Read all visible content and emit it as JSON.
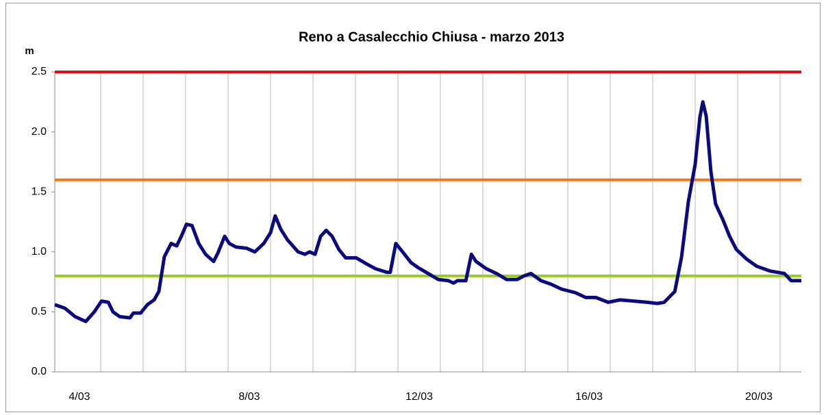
{
  "chart_data": {
    "type": "line",
    "title": "Reno a Casalecchio Chiusa - marzo 2013",
    "y_label": "m",
    "x": [
      3.92,
      4.16,
      4.4,
      4.65,
      4.85,
      5.02,
      5.18,
      5.29,
      5.45,
      5.69,
      5.77,
      5.94,
      6.1,
      6.26,
      6.37,
      6.5,
      6.66,
      6.79,
      6.9,
      7.02,
      7.15,
      7.31,
      7.47,
      7.66,
      7.76,
      7.92,
      8.03,
      8.19,
      8.44,
      8.63,
      8.84,
      9.0,
      9.11,
      9.24,
      9.4,
      9.65,
      9.81,
      9.92,
      10.05,
      10.18,
      10.31,
      10.45,
      10.61,
      10.77,
      11.02,
      11.26,
      11.47,
      11.74,
      11.82,
      11.95,
      12.11,
      12.31,
      12.47,
      12.71,
      12.95,
      13.19,
      13.31,
      13.4,
      13.6,
      13.73,
      13.84,
      14.08,
      14.32,
      14.56,
      14.81,
      14.97,
      15.13,
      15.37,
      15.61,
      15.85,
      16.18,
      16.42,
      16.66,
      16.95,
      17.23,
      17.55,
      17.87,
      18.11,
      18.27,
      18.52,
      18.68,
      18.84,
      19.0,
      19.11,
      19.18,
      19.26,
      19.37,
      19.48,
      19.65,
      19.81,
      19.97,
      20.21,
      20.45,
      20.77,
      21.1,
      21.26,
      21.5
    ],
    "series": [
      {
        "color": "#0b0b80",
        "values": [
          0.56,
          0.53,
          0.46,
          0.42,
          0.5,
          0.59,
          0.58,
          0.5,
          0.46,
          0.45,
          0.49,
          0.49,
          0.56,
          0.6,
          0.67,
          0.96,
          1.07,
          1.05,
          1.13,
          1.23,
          1.22,
          1.07,
          0.98,
          0.92,
          0.99,
          1.13,
          1.07,
          1.04,
          1.03,
          1.0,
          1.07,
          1.16,
          1.3,
          1.19,
          1.1,
          1.0,
          0.98,
          1.0,
          0.98,
          1.13,
          1.18,
          1.13,
          1.02,
          0.95,
          0.95,
          0.9,
          0.86,
          0.83,
          0.83,
          1.07,
          1.0,
          0.91,
          0.87,
          0.82,
          0.77,
          0.76,
          0.74,
          0.76,
          0.76,
          0.98,
          0.92,
          0.86,
          0.82,
          0.77,
          0.77,
          0.8,
          0.82,
          0.76,
          0.73,
          0.69,
          0.66,
          0.62,
          0.62,
          0.58,
          0.6,
          0.59,
          0.58,
          0.57,
          0.58,
          0.67,
          0.96,
          1.42,
          1.73,
          2.12,
          2.25,
          2.13,
          1.67,
          1.4,
          1.27,
          1.13,
          1.02,
          0.94,
          0.88,
          0.84,
          0.82,
          0.76,
          0.76
        ]
      }
    ],
    "thresholds": [
      {
        "value": 2.5,
        "color": "#e01010"
      },
      {
        "value": 1.6,
        "color": "#f07818"
      },
      {
        "value": 0.8,
        "color": "#99cc22"
      }
    ],
    "xlim": [
      3.92,
      21.5
    ],
    "xticks": [
      {
        "value": 4.5,
        "label": "4/03"
      },
      {
        "value": 8.5,
        "label": "8/03"
      },
      {
        "value": 12.5,
        "label": "12/03"
      },
      {
        "value": 16.5,
        "label": "16/03"
      },
      {
        "value": 20.5,
        "label": "20/03"
      }
    ],
    "xgrid": [
      5,
      6,
      7,
      8,
      9,
      10,
      11,
      12,
      13,
      14,
      15,
      16,
      17,
      18,
      19,
      20,
      21
    ],
    "ylim": [
      0,
      2.5
    ],
    "yticks": [
      {
        "value": 0,
        "label": "0.0"
      },
      0.5,
      {
        "value": 1,
        "label": "1.0"
      },
      1.5,
      {
        "value": 2,
        "label": "2.0"
      },
      2.5
    ]
  }
}
